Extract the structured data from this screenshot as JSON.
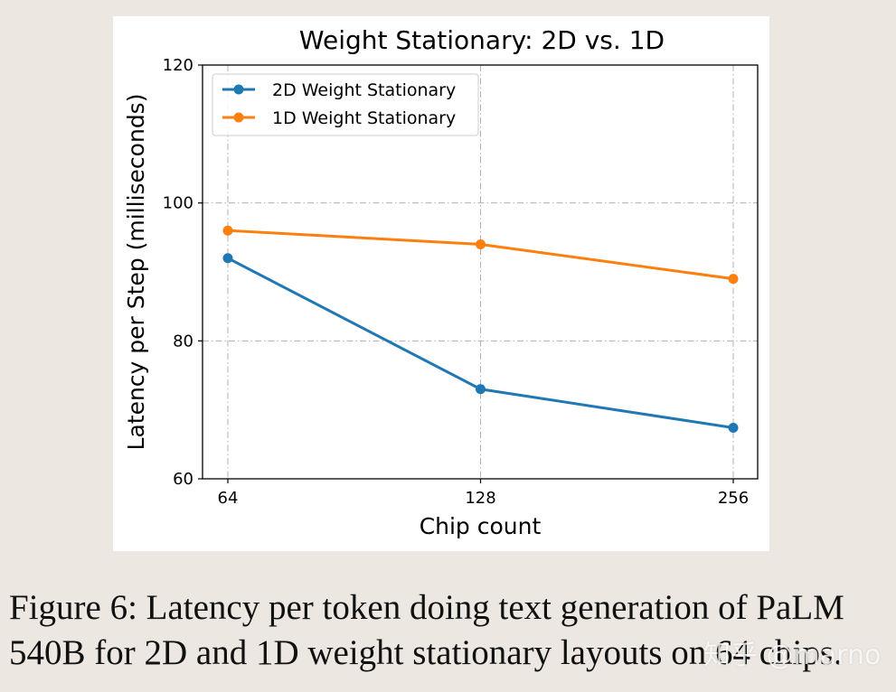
{
  "chart_data": {
    "type": "line",
    "title": "Weight Stationary: 2D vs. 1D",
    "xlabel": "Chip count",
    "ylabel": "Latency per Step (milliseconds)",
    "x": [
      64,
      128,
      256
    ],
    "x_tick_labels": [
      "64",
      "128",
      "256"
    ],
    "x_scale": "log2",
    "ylim": [
      60,
      120
    ],
    "y_ticks": [
      60,
      80,
      100,
      120
    ],
    "grid": true,
    "legend_position": "top-left",
    "series": [
      {
        "name": "2D Weight Stationary",
        "color": "#1f77b4",
        "values": [
          92,
          73,
          67.4
        ]
      },
      {
        "name": "1D Weight Stationary",
        "color": "#ff7f0e",
        "values": [
          96,
          94,
          89
        ]
      }
    ]
  },
  "caption": "Figure 6: Latency per token doing text generation of PaLM 540B for 2D and 1D weight stationary layouts on 64 chips.",
  "watermark": "知乎 @marno"
}
